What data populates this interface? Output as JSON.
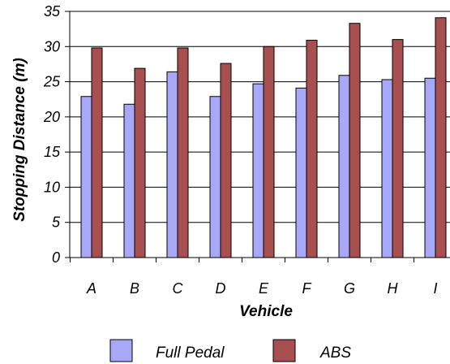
{
  "chart_data": {
    "type": "bar",
    "title": "",
    "xlabel": "Vehicle",
    "ylabel": "Stopping Distance (m)",
    "ylim": [
      0,
      35
    ],
    "yticks": [
      0,
      5,
      10,
      15,
      20,
      25,
      30,
      35
    ],
    "grid": true,
    "legend_position": "bottom",
    "categories": [
      "A",
      "B",
      "C",
      "D",
      "E",
      "F",
      "G",
      "H",
      "I"
    ],
    "series": [
      {
        "name": "Full Pedal",
        "color": "#a8a8f8",
        "values": [
          22.9,
          21.8,
          26.4,
          22.9,
          24.7,
          24.1,
          25.9,
          25.3,
          25.5
        ]
      },
      {
        "name": "ABS",
        "color": "#a85050",
        "values": [
          29.8,
          26.9,
          29.8,
          27.6,
          30.0,
          30.9,
          33.3,
          31.0,
          34.1
        ]
      }
    ]
  }
}
